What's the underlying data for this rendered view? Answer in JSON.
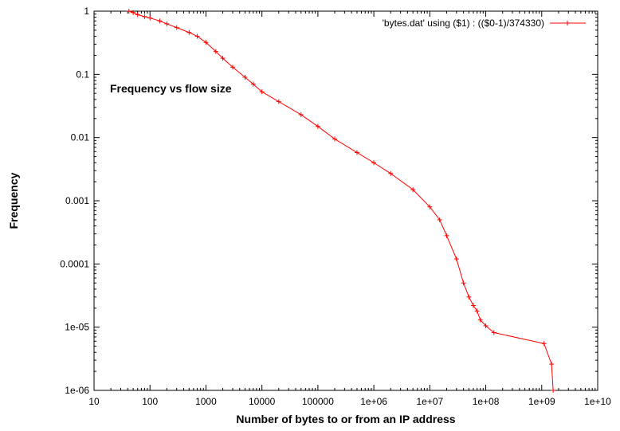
{
  "chart_data": {
    "type": "line",
    "title": "",
    "xlabel": "Number of bytes to or from an IP address",
    "ylabel": "Frequency",
    "xscale": "log",
    "yscale": "log",
    "xlim": [
      10,
      10000000000
    ],
    "ylim": [
      1e-06,
      1
    ],
    "x_tick_labels": [
      "10",
      "100",
      "1000",
      "10000",
      "100000",
      "1e+06",
      "1e+07",
      "1e+08",
      "1e+09",
      "1e+10"
    ],
    "y_tick_labels": [
      "1",
      "0.1",
      "0.01",
      "0.001",
      "0.0001",
      "1e-05",
      "1e-06"
    ],
    "grid": false,
    "legend_position": "top-right",
    "annotation": "Frequency vs flow size",
    "series": [
      {
        "name": "'bytes.dat' using ($1) : (($0-1)/374330)",
        "color": "#ff0000",
        "marker": "plus",
        "x": [
          42,
          50,
          60,
          80,
          100,
          150,
          200,
          300,
          500,
          700,
          1000,
          1500,
          2000,
          3000,
          5000,
          7000,
          10000,
          20000,
          50000,
          100000,
          200000,
          500000,
          1000000,
          2000000,
          5000000,
          10000000,
          15000000,
          20000000,
          30000000,
          40000000,
          50000000,
          60000000,
          70000000,
          80000000,
          100000000,
          140000000,
          1100000000,
          1500000000,
          1600000000
        ],
        "y": [
          1,
          0.95,
          0.88,
          0.82,
          0.78,
          0.7,
          0.63,
          0.55,
          0.46,
          0.4,
          0.32,
          0.23,
          0.18,
          0.13,
          0.09,
          0.07,
          0.053,
          0.037,
          0.023,
          0.015,
          0.0095,
          0.0058,
          0.004,
          0.0027,
          0.0015,
          0.0008,
          0.0005,
          0.00028,
          0.00012,
          5e-05,
          3e-05,
          2.2e-05,
          1.8e-05,
          1.3e-05,
          1.05e-05,
          8.2e-06,
          5.5e-06,
          2.6e-06,
          1e-06
        ]
      }
    ]
  }
}
